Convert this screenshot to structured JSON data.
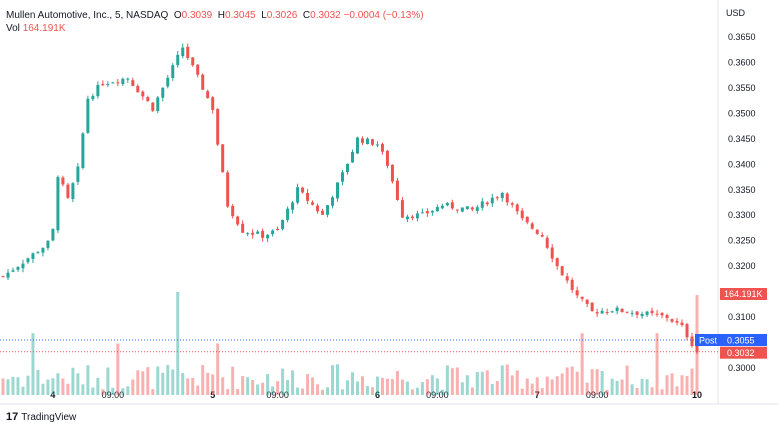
{
  "header": {
    "symbol": "Mullen Automotive, Inc., 5, NASDAQ",
    "o_label": "O",
    "o": "0.3039",
    "h_label": "H",
    "h": "0.3045",
    "l_label": "L",
    "l": "0.3026",
    "c_label": "C",
    "c": "0.3032",
    "change": "−0.0004 (−0.13%)",
    "vol_label": "Vol",
    "vol": "164.191K"
  },
  "currency": "USD",
  "branding": "TradingView",
  "colors": {
    "up": "#26a69a",
    "down": "#ef5350",
    "post": "#2962ff"
  },
  "chart_data": {
    "type": "candlestick",
    "title": "Mullen Automotive, Inc., 5, NASDAQ",
    "ylim": [
      0.2955,
      0.3705
    ],
    "y_ticks": [
      "0.3650",
      "0.3600",
      "0.3550",
      "0.3500",
      "0.3450",
      "0.3400",
      "0.3350",
      "0.3300",
      "0.3250",
      "0.3200",
      "0.3100",
      "0.3000"
    ],
    "x_ticks": [
      {
        "label": "4",
        "bar": 10
      },
      {
        "label": "09:00",
        "bar": 22
      },
      {
        "label": "5",
        "bar": 42
      },
      {
        "label": "09:00",
        "bar": 55
      },
      {
        "label": "6",
        "bar": 75
      },
      {
        "label": "09:00",
        "bar": 87
      },
      {
        "label": "7",
        "bar": 107
      },
      {
        "label": "09:00",
        "bar": 119
      },
      {
        "label": "10",
        "bar": 139
      }
    ],
    "close_path": [
      [
        0,
        0.318
      ],
      [
        9,
        0.3245
      ],
      [
        10,
        0.327
      ],
      [
        11,
        0.338
      ],
      [
        13,
        0.333
      ],
      [
        15,
        0.339
      ],
      [
        17,
        0.353
      ],
      [
        20,
        0.356
      ],
      [
        25,
        0.357
      ],
      [
        30,
        0.351
      ],
      [
        34,
        0.359
      ],
      [
        36,
        0.363
      ],
      [
        39,
        0.357
      ],
      [
        42,
        0.351
      ],
      [
        43,
        0.344
      ],
      [
        45,
        0.332
      ],
      [
        48,
        0.327
      ],
      [
        52,
        0.326
      ],
      [
        55,
        0.327
      ],
      [
        59,
        0.335
      ],
      [
        64,
        0.33
      ],
      [
        68,
        0.338
      ],
      [
        71,
        0.345
      ],
      [
        75,
        0.344
      ],
      [
        77,
        0.34
      ],
      [
        80,
        0.33
      ],
      [
        84,
        0.33
      ],
      [
        88,
        0.332
      ],
      [
        94,
        0.331
      ],
      [
        100,
        0.3345
      ],
      [
        104,
        0.329
      ],
      [
        108,
        0.326
      ],
      [
        111,
        0.32
      ],
      [
        115,
        0.314
      ],
      [
        118,
        0.311
      ],
      [
        122,
        0.3115
      ],
      [
        126,
        0.311
      ],
      [
        133,
        0.31
      ],
      [
        136,
        0.308
      ],
      [
        139,
        0.3032
      ]
    ],
    "bars": 140,
    "volume_max": "164.191K",
    "post_price": "0.3055",
    "post_label": "Post",
    "last_price": "0.3032"
  }
}
